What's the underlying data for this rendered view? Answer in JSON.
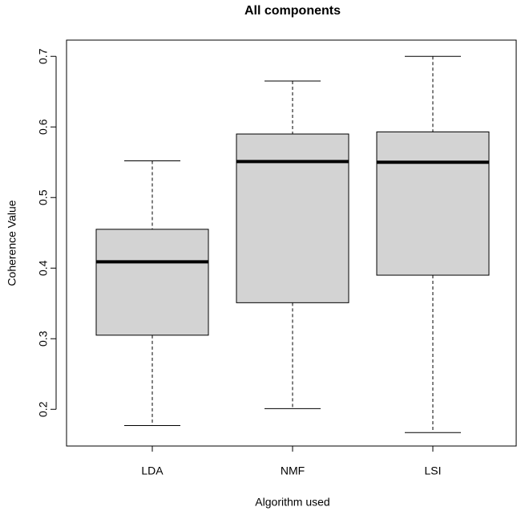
{
  "chart_data": {
    "type": "box",
    "title": "All components",
    "x_label": "Algorithm used",
    "y_label": "Coherence Value",
    "categories": [
      "LDA",
      "NMF",
      "LSI"
    ],
    "boxes": [
      {
        "min": 0.177,
        "q1": 0.305,
        "median": 0.409,
        "q3": 0.455,
        "max": 0.552
      },
      {
        "min": 0.201,
        "q1": 0.351,
        "median": 0.551,
        "q3": 0.59,
        "max": 0.665
      },
      {
        "min": 0.167,
        "q1": 0.39,
        "median": 0.55,
        "q3": 0.593,
        "max": 0.7
      }
    ],
    "color": "#d3d3d3",
    "ylim": [
      0.148,
      0.723
    ],
    "yticks": [
      0.2,
      0.3,
      0.4,
      0.5,
      0.6,
      0.7
    ]
  }
}
